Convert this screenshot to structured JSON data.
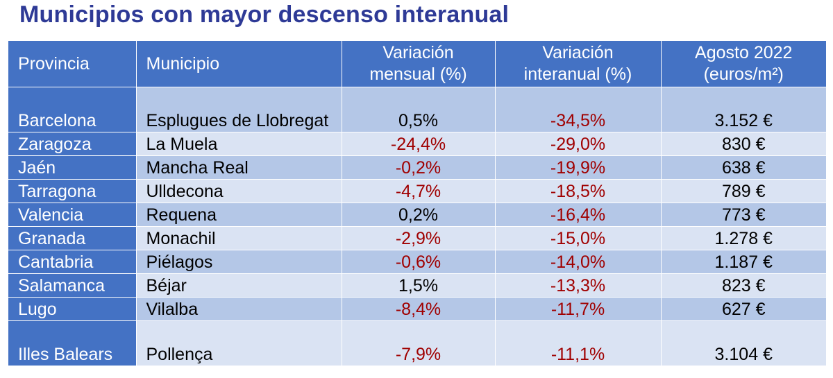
{
  "title": "Municipios con mayor descenso interanual",
  "columns": [
    "Provincia",
    "Municipio",
    "Variación mensual (%)",
    "Variación interanual (%)",
    "Agosto 2022 (euros/m²)"
  ],
  "rows": [
    {
      "provincia": "Barcelona",
      "municipio": "Esplugues de Llobregat",
      "mensual": "0,5%",
      "interanual": "-34,5%",
      "precio": "3.152 €"
    },
    {
      "provincia": "Zaragoza",
      "municipio": "La Muela",
      "mensual": "-24,4%",
      "interanual": "-29,0%",
      "precio": "830 €"
    },
    {
      "provincia": "Jaén",
      "municipio": "Mancha Real",
      "mensual": "-0,2%",
      "interanual": "-19,9%",
      "precio": "638 €"
    },
    {
      "provincia": "Tarragona",
      "municipio": "Ulldecona",
      "mensual": "-4,7%",
      "interanual": "-18,5%",
      "precio": "789 €"
    },
    {
      "provincia": "Valencia",
      "municipio": "Requena",
      "mensual": "0,2%",
      "interanual": "-16,4%",
      "precio": "773 €"
    },
    {
      "provincia": "Granada",
      "municipio": "Monachil",
      "mensual": "-2,9%",
      "interanual": "-15,0%",
      "precio": "1.278 €"
    },
    {
      "provincia": "Cantabria",
      "municipio": "Piélagos",
      "mensual": "-0,6%",
      "interanual": "-14,0%",
      "precio": "1.187 €"
    },
    {
      "provincia": "Salamanca",
      "municipio": "Béjar",
      "mensual": "1,5%",
      "interanual": "-13,3%",
      "precio": "823 €"
    },
    {
      "provincia": "Lugo",
      "municipio": "Vilalba",
      "mensual": "-8,4%",
      "interanual": "-11,7%",
      "precio": "627 €"
    },
    {
      "provincia": "Illes Balears",
      "municipio": "Pollença",
      "mensual": "-7,9%",
      "interanual": "-11,1%",
      "precio": "3.104 €"
    }
  ],
  "colors": {
    "header_bg": "#4472c4",
    "row_dark": "#b4c7e7",
    "row_light": "#dae3f3",
    "negative_text": "#a00000",
    "title_text": "#2e3a96"
  }
}
